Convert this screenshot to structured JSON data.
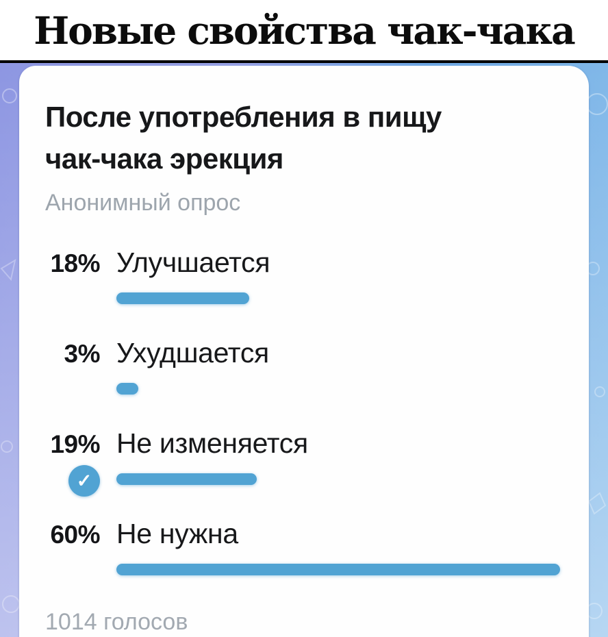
{
  "header": {
    "title": "Новые свойства чак-чака"
  },
  "wallpaper": {
    "left_color": "#8d96e2",
    "right_color": "#82b9e9"
  },
  "poll": {
    "question": "После употребления в пищу чак-чака эрекция",
    "type_label": "Анонимный опрос",
    "votes_label": "1014 голосов",
    "accent_color": "#51a3d3",
    "checkmark_glyph": "✓",
    "options": [
      {
        "percent_label": "18%",
        "percent": 18,
        "label": "Улучшается",
        "chosen": false
      },
      {
        "percent_label": "3%",
        "percent": 3,
        "label": "Ухудшается",
        "chosen": false
      },
      {
        "percent_label": "19%",
        "percent": 19,
        "label": "Не изменяется",
        "chosen": true
      },
      {
        "percent_label": "60%",
        "percent": 60,
        "label": "Не нужна",
        "chosen": false
      }
    ]
  }
}
